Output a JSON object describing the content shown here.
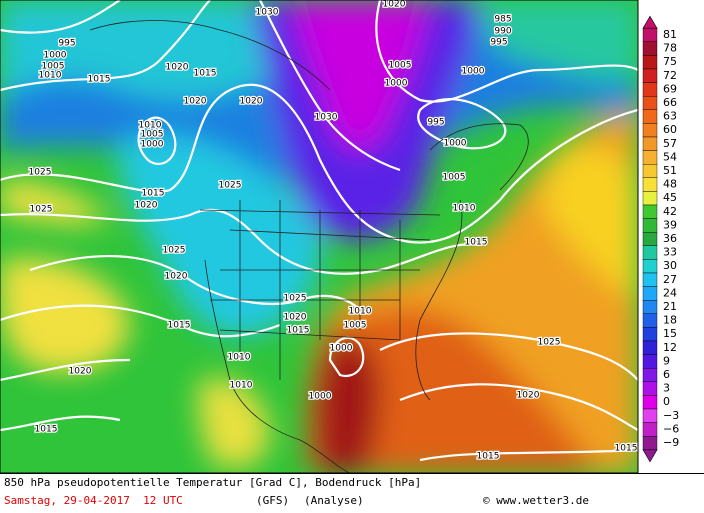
{
  "isobar_labels": [
    "995",
    "1000",
    "1005",
    "1010",
    "1015",
    "1020",
    "1015",
    "1020",
    "1020",
    "1030",
    "1020",
    "985",
    "990",
    "995",
    "1000",
    "1005",
    "1000",
    "1030",
    "995",
    "1000",
    "1010",
    "1005",
    "1000",
    "1025",
    "1015",
    "1020",
    "1025",
    "1025",
    "1005",
    "1010",
    "1015",
    "1025",
    "1020",
    "1025",
    "1020",
    "1015",
    "1010",
    "1005",
    "1015",
    "1000",
    "1010",
    "1010",
    "1000",
    "1025",
    "1020",
    "1020",
    "1015",
    "1015",
    "1015"
  ],
  "colorbar": {
    "labels": [
      "81",
      "78",
      "75",
      "72",
      "69",
      "66",
      "63",
      "60",
      "57",
      "54",
      "51",
      "48",
      "45",
      "42",
      "39",
      "36",
      "33",
      "30",
      "27",
      "24",
      "21",
      "18",
      "15",
      "12",
      "9",
      "6",
      "3",
      "0",
      "−3",
      "−6",
      "−9"
    ]
  },
  "footer": {
    "title": "850 hPa pseudopotentielle Temperatur [Grad C], Bodendruck [hPa]",
    "date": "Samstag, 29-04-2017  12 UTC",
    "model": "(GFS)",
    "run": "(Analyse)",
    "source": "© www.wetter3.de"
  }
}
